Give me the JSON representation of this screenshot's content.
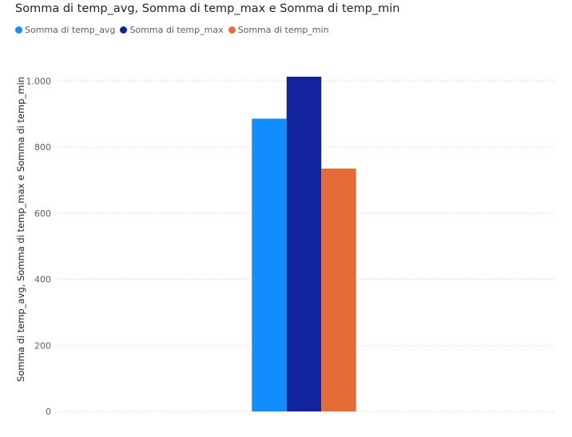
{
  "chart_data": {
    "type": "bar",
    "title": "Somma di temp_avg, Somma di temp_max e Somma di temp_min",
    "ylabel": "Somma di temp_avg, Somma di temp_max e Somma di temp_min",
    "xlabel": "",
    "categories": [
      ""
    ],
    "series": [
      {
        "name": "Somma di temp_avg",
        "values": [
          886
        ],
        "color": "#118DFF"
      },
      {
        "name": "Somma di temp_max",
        "values": [
          1013
        ],
        "color": "#12239E"
      },
      {
        "name": "Somma di temp_min",
        "values": [
          735
        ],
        "color": "#E66C37"
      }
    ],
    "ylim": [
      0,
      1013
    ],
    "yticks": [
      0,
      200,
      400,
      600,
      800,
      1000
    ],
    "ytick_labels": [
      "0",
      "200",
      "400",
      "600",
      "800",
      "1.000"
    ],
    "grid": true,
    "legend_position": "top-left"
  }
}
